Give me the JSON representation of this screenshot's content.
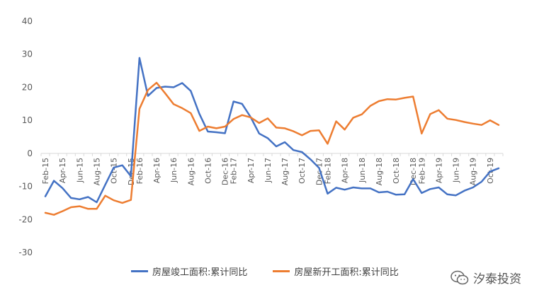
{
  "chart_data": {
    "type": "line",
    "ylim": [
      -30,
      40
    ],
    "yticks": [
      -30,
      -20,
      -10,
      0,
      10,
      20,
      30,
      40
    ],
    "tick_labels": [
      "Feb-15",
      "Apr-15",
      "Jun-15",
      "Aug-15",
      "Oct-15",
      "Dec-15",
      "Feb-16",
      "Apr-16",
      "Jun-16",
      "Aug-16",
      "Oct-16",
      "Dec-16",
      "Feb-17",
      "Apr-17",
      "Jun-17",
      "Aug-17",
      "Oct-17",
      "Dec-17",
      "Feb-18",
      "Apr-18",
      "Jun-18",
      "Aug-18",
      "Oct-18",
      "Dec-18",
      "Feb-19",
      "Apr-19",
      "Jun-19",
      "Aug-19",
      "Oct-19"
    ],
    "x": [
      "2015-02",
      "2015-03",
      "2015-04",
      "2015-05",
      "2015-06",
      "2015-07",
      "2015-08",
      "2015-09",
      "2015-10",
      "2015-11",
      "2015-12",
      "2016-02",
      "2016-03",
      "2016-04",
      "2016-05",
      "2016-06",
      "2016-07",
      "2016-08",
      "2016-09",
      "2016-10",
      "2016-11",
      "2016-12",
      "2017-02",
      "2017-03",
      "2017-04",
      "2017-05",
      "2017-06",
      "2017-07",
      "2017-08",
      "2017-09",
      "2017-10",
      "2017-11",
      "2017-12",
      "2018-02",
      "2018-03",
      "2018-04",
      "2018-05",
      "2018-06",
      "2018-07",
      "2018-08",
      "2018-09",
      "2018-10",
      "2018-11",
      "2018-12",
      "2019-02",
      "2019-03",
      "2019-04",
      "2019-05",
      "2019-06",
      "2019-07",
      "2019-08",
      "2019-09",
      "2019-10",
      "2019-11"
    ],
    "series": [
      {
        "name": "房屋竣工面积:累计同比",
        "color": "#4472C4",
        "values": [
          -13.0,
          -8.3,
          -10.5,
          -13.5,
          -13.9,
          -13.2,
          -14.8,
          -9.5,
          -4.3,
          -3.6,
          -6.9,
          28.9,
          17.4,
          19.8,
          20.2,
          20.0,
          21.3,
          18.9,
          12.0,
          6.6,
          6.4,
          6.1,
          15.7,
          15.0,
          11.0,
          6.0,
          4.6,
          2.1,
          3.4,
          1.0,
          0.4,
          -1.8,
          -4.4,
          -12.2,
          -10.4,
          -11.0,
          -10.3,
          -10.6,
          -10.6,
          -11.8,
          -11.6,
          -12.5,
          -12.4,
          -7.8,
          -12.0,
          -10.8,
          -10.3,
          -12.4,
          -12.7,
          -11.3,
          -10.3,
          -8.6,
          -5.5,
          -4.5
        ]
      },
      {
        "name": "房屋新开工面积:累计同比",
        "color": "#ED7D31",
        "values": [
          -18.0,
          -18.6,
          -17.5,
          -16.3,
          -16.0,
          -16.8,
          -16.8,
          -12.8,
          -14.2,
          -15.0,
          -14.1,
          13.5,
          19.2,
          21.4,
          18.2,
          14.9,
          13.7,
          12.2,
          6.8,
          8.1,
          7.6,
          8.1,
          10.4,
          11.6,
          10.9,
          9.2,
          10.6,
          7.8,
          7.6,
          6.7,
          5.5,
          6.8,
          7.0,
          2.9,
          9.7,
          7.2,
          10.8,
          11.8,
          14.4,
          15.8,
          16.4,
          16.3,
          16.8,
          17.2,
          6.0,
          11.9,
          13.1,
          10.5,
          10.1,
          9.5,
          9.0,
          8.6,
          10.0,
          8.6
        ]
      }
    ]
  },
  "legend": {
    "series1_label": "房屋竣工面积:累计同比",
    "series2_label": "房屋新开工面积:累计同比"
  },
  "watermark": {
    "text": "汐泰投资",
    "icon": "wechat-icon"
  }
}
